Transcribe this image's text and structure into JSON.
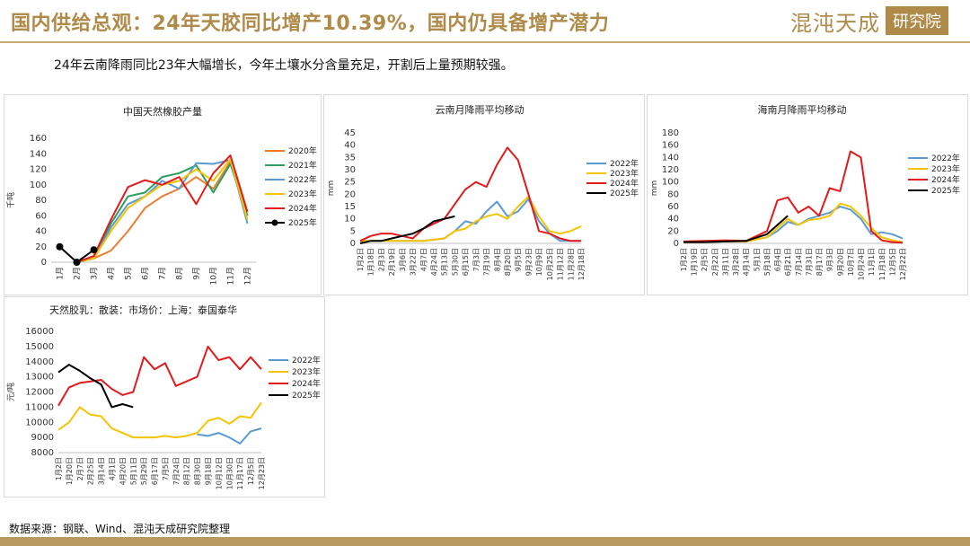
{
  "header": {
    "title": "国内供给总观：24年天胶同比增产10.39%，国内仍具备增产潜力",
    "logo_text": "混沌天成",
    "logo_box": "研究院"
  },
  "summary": "24年云南降雨同比23年大幅增长，今年土壤水分含量充足，开割后上量预期较强。",
  "footer": {
    "source": "数据来源：钢联、Wind、混沌天成研究院整理"
  },
  "colors": {
    "2020": "#ed7d31",
    "2021": "#2e9e5e",
    "2022": "#5b9bd5",
    "2023": "#f5c400",
    "2024": "#e31a1c",
    "2025": "#000000",
    "brand": "#b08a48"
  },
  "chart_data": [
    {
      "id": "production",
      "type": "line",
      "title": "中国天然橡胶产量",
      "ylabel": "千吨",
      "ylim": [
        0,
        160
      ],
      "yticks": [
        0,
        20,
        40,
        60,
        80,
        100,
        120,
        140,
        160
      ],
      "categories": [
        "1月",
        "2月",
        "3月",
        "4月",
        "5月",
        "6月",
        "7月",
        "8月",
        "9月",
        "10月",
        "11月",
        "12月"
      ],
      "series": [
        {
          "name": "2020年",
          "color": "#ed7d31",
          "values": [
            null,
            0,
            5,
            15,
            40,
            70,
            85,
            95,
            110,
            95,
            130,
            60
          ]
        },
        {
          "name": "2021年",
          "color": "#2e9e5e",
          "values": [
            null,
            0,
            5,
            50,
            85,
            90,
            110,
            115,
            125,
            90,
            127,
            60
          ]
        },
        {
          "name": "2022年",
          "color": "#5b9bd5",
          "values": [
            null,
            0,
            5,
            45,
            75,
            85,
            105,
            95,
            128,
            127,
            132,
            50
          ]
        },
        {
          "name": "2023年",
          "color": "#f5c400",
          "values": [
            null,
            0,
            5,
            40,
            70,
            85,
            100,
            105,
            120,
            105,
            133,
            55
          ]
        },
        {
          "name": "2024年",
          "color": "#e31a1c",
          "values": [
            null,
            0,
            8,
            55,
            97,
            106,
            100,
            110,
            75,
            115,
            138,
            65
          ]
        },
        {
          "name": "2025年",
          "color": "#000000",
          "marker": true,
          "values": [
            20,
            0,
            16,
            null,
            null,
            null,
            null,
            null,
            null,
            null,
            null,
            null
          ]
        }
      ],
      "legend": "right"
    },
    {
      "id": "yunnan-rain",
      "type": "line",
      "title": "云南月降雨平均移动",
      "ylabel": "mm",
      "ylim": [
        0,
        45
      ],
      "yticks": [
        0,
        5,
        10,
        15,
        20,
        25,
        30,
        35,
        40,
        45
      ],
      "xticks": [
        "1月2日",
        "1月18日",
        "2月3日",
        "2月19日",
        "3月6日",
        "3月22日",
        "4月7日",
        "4月24日",
        "5月13日",
        "5月30日",
        "6月15日",
        "7月3日",
        "7月19日",
        "8月4日",
        "8月20日",
        "9月5日",
        "9月23日",
        "10月9日",
        "10月25日",
        "11月12日",
        "11月28日",
        "12月18日"
      ],
      "series": [
        {
          "name": "2022年",
          "color": "#5b9bd5",
          "x": [
            0,
            2,
            4,
            6,
            8,
            9,
            10,
            11,
            12,
            13,
            14,
            15,
            16,
            17,
            18,
            19,
            20,
            21
          ],
          "values": [
            1,
            1,
            1,
            1,
            2,
            5,
            9,
            8,
            13,
            17,
            11,
            13,
            18,
            9,
            4,
            1,
            1,
            1
          ]
        },
        {
          "name": "2023年",
          "color": "#f5c400",
          "x": [
            0,
            2,
            4,
            6,
            8,
            9,
            10,
            11,
            12,
            13,
            14,
            15,
            16,
            17,
            18,
            19,
            20,
            21
          ],
          "values": [
            1,
            1,
            1,
            1,
            2,
            5,
            6,
            9,
            11,
            12,
            10,
            15,
            19,
            11,
            5,
            4,
            5,
            7
          ]
        },
        {
          "name": "2024年",
          "color": "#e31a1c",
          "x": [
            0,
            1,
            2,
            3,
            4,
            5,
            6,
            7,
            8,
            9,
            10,
            11,
            12,
            13,
            14,
            15,
            16,
            17,
            18,
            19,
            20,
            21
          ],
          "values": [
            1,
            3,
            4,
            4,
            3,
            2,
            6,
            8,
            10,
            16,
            22,
            25,
            23,
            32,
            39,
            34,
            20,
            5,
            4,
            2,
            1,
            1
          ]
        },
        {
          "name": "2025年",
          "color": "#000000",
          "x": [
            0,
            1,
            2,
            3,
            4,
            5,
            6,
            7,
            8,
            9
          ],
          "values": [
            0,
            1,
            1,
            2,
            3,
            4,
            6,
            9,
            10,
            11
          ]
        }
      ],
      "legend": "right"
    },
    {
      "id": "hainan-rain",
      "type": "line",
      "title": "海南月降雨平均移动",
      "ylabel": "mm",
      "ylim": [
        0,
        180
      ],
      "yticks": [
        0,
        20,
        40,
        60,
        80,
        100,
        120,
        140,
        160,
        180
      ],
      "xticks": [
        "1月2日",
        "1月19日",
        "2月5日",
        "2月22日",
        "3月11日",
        "3月28日",
        "4月14日",
        "5月1日",
        "5月18日",
        "6月4日",
        "6月21日",
        "7月14日",
        "7月31日",
        "8月17日",
        "9月3日",
        "9月20日",
        "10月7日",
        "10月24日",
        "11月1日",
        "11月18日",
        "12月5日",
        "12月22日"
      ],
      "series": [
        {
          "name": "2022年",
          "color": "#5b9bd5",
          "x": [
            0,
            2,
            4,
            6,
            8,
            9,
            10,
            11,
            12,
            13,
            14,
            15,
            16,
            17,
            18,
            19,
            20,
            21
          ],
          "values": [
            2,
            2,
            3,
            3,
            10,
            20,
            35,
            30,
            40,
            45,
            50,
            60,
            55,
            40,
            15,
            18,
            15,
            8
          ]
        },
        {
          "name": "2023年",
          "color": "#f5c400",
          "x": [
            0,
            2,
            4,
            6,
            8,
            9,
            10,
            11,
            12,
            13,
            14,
            15,
            16,
            17,
            18,
            19,
            20,
            21
          ],
          "values": [
            2,
            2,
            3,
            3,
            10,
            25,
            40,
            30,
            38,
            40,
            45,
            65,
            60,
            45,
            25,
            10,
            5,
            2
          ]
        },
        {
          "name": "2024年",
          "color": "#e31a1c",
          "x": [
            0,
            2,
            4,
            6,
            8,
            9,
            10,
            11,
            12,
            13,
            14,
            15,
            16,
            17,
            18,
            19,
            20,
            21
          ],
          "values": [
            3,
            4,
            5,
            4,
            20,
            70,
            75,
            50,
            60,
            45,
            90,
            85,
            150,
            140,
            20,
            5,
            2,
            1
          ]
        },
        {
          "name": "2025年",
          "color": "#000000",
          "x": [
            0,
            2,
            4,
            6,
            8,
            9,
            10
          ],
          "values": [
            2,
            2,
            3,
            4,
            15,
            30,
            45
          ]
        }
      ],
      "legend": "right"
    },
    {
      "id": "latex-price",
      "type": "line",
      "title": "天然胶乳：散装：市场价：上海：泰国泰华",
      "ylabel": "元/吨",
      "ylim": [
        8000,
        16000
      ],
      "yticks": [
        8000,
        9000,
        10000,
        11000,
        12000,
        13000,
        14000,
        15000,
        16000
      ],
      "xticks": [
        "1月2日",
        "1月20日",
        "2月7日",
        "2月25日",
        "3月14日",
        "4月1日",
        "4月20日",
        "5月11日",
        "5月29日",
        "6月17日",
        "7月5日",
        "7月24日",
        "8月12日",
        "8月30日",
        "9月18日",
        "10月12日",
        "10月30日",
        "11月17日",
        "12月5日",
        "12月23日"
      ],
      "series": [
        {
          "name": "2022年",
          "color": "#5b9bd5",
          "x": [
            13,
            14,
            15,
            16,
            17,
            18,
            19
          ],
          "values": [
            9200,
            9100,
            9300,
            9000,
            8600,
            9400,
            9600
          ]
        },
        {
          "name": "2023年",
          "color": "#f5c400",
          "x": [
            0,
            1,
            2,
            3,
            4,
            5,
            6,
            7,
            8,
            9,
            10,
            11,
            12,
            13,
            14,
            15,
            16,
            17,
            18,
            19
          ],
          "values": [
            9500,
            10000,
            11000,
            10500,
            10400,
            9600,
            9300,
            9000,
            9000,
            9000,
            9100,
            9000,
            9100,
            9300,
            10100,
            10300,
            9900,
            10400,
            10300,
            11300
          ]
        },
        {
          "name": "2024年",
          "color": "#e31a1c",
          "x": [
            0,
            1,
            2,
            3,
            4,
            5,
            6,
            7,
            8,
            9,
            10,
            11,
            12,
            13,
            14,
            15,
            16,
            17,
            18,
            19
          ],
          "values": [
            11100,
            12300,
            12600,
            12700,
            12800,
            12200,
            11800,
            12000,
            14300,
            13500,
            13900,
            12400,
            12700,
            13000,
            15000,
            14100,
            14300,
            13500,
            14300,
            13500
          ]
        },
        {
          "name": "2025年",
          "color": "#000000",
          "x": [
            0,
            1,
            2,
            3,
            4,
            5,
            6,
            7
          ],
          "values": [
            13300,
            13800,
            13400,
            12900,
            12500,
            11000,
            11200,
            11000
          ]
        }
      ],
      "legend": "right"
    }
  ]
}
